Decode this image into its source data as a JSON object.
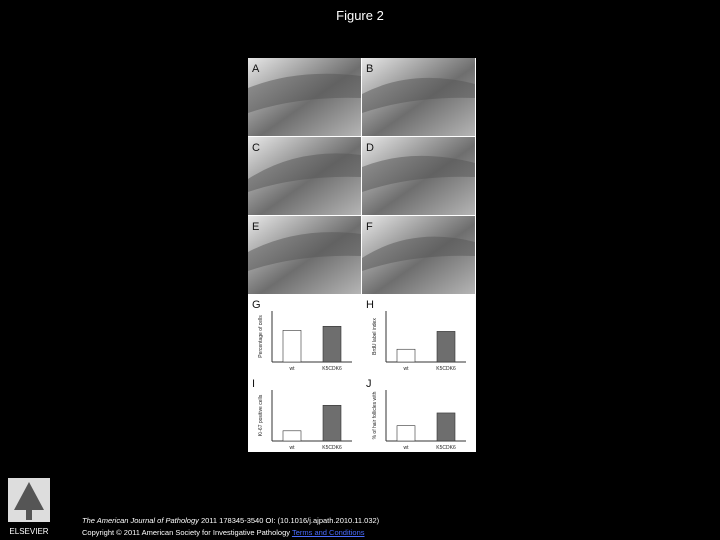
{
  "header": {
    "title": "Figure 2"
  },
  "figure": {
    "panels": [
      "A",
      "B",
      "C",
      "D",
      "E",
      "F"
    ],
    "charts": [
      {
        "label": "G",
        "type": "bar",
        "y_label": "Percentage of cells",
        "categories": [
          "wt",
          "K5CDK6"
        ],
        "values": [
          0.62,
          0.7
        ],
        "colors": [
          "#ffffff",
          "#6e6e6e"
        ],
        "ylim": [
          0,
          1
        ]
      },
      {
        "label": "H",
        "type": "bar",
        "y_label": "BrdU label index",
        "categories": [
          "wt",
          "K5CDK6"
        ],
        "values": [
          0.25,
          0.6
        ],
        "colors": [
          "#ffffff",
          "#6e6e6e"
        ],
        "ylim": [
          0,
          1
        ]
      },
      {
        "label": "I",
        "type": "bar",
        "y_label": "Ki-67 positive cells",
        "categories": [
          "wt",
          "K5CDK6"
        ],
        "values": [
          0.2,
          0.7
        ],
        "colors": [
          "#ffffff",
          "#6e6e6e"
        ],
        "ylim": [
          0,
          1
        ]
      },
      {
        "label": "J",
        "type": "bar",
        "y_label": "% of hair follicles with",
        "categories": [
          "wt",
          "K5CDK6"
        ],
        "values": [
          0.3,
          0.55
        ],
        "colors": [
          "#ffffff",
          "#6e6e6e"
        ],
        "ylim": [
          0,
          1
        ]
      }
    ]
  },
  "footer": {
    "logo": "ELSEVIER",
    "journal": "The American Journal of Pathology",
    "citation": "2011 178345-3540 OI: (10.1016/j.ajpath.2010.11.032)",
    "copyright": "Copyright © 2011 American Society for Investigative Pathology",
    "link": "Terms and Conditions"
  }
}
